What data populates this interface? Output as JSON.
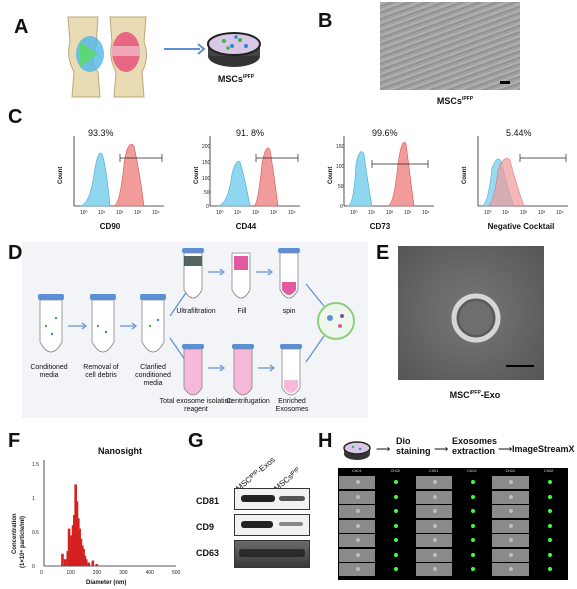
{
  "panels": {
    "A": {
      "label": "A",
      "dish_caption": "MSCs",
      "dish_caption_sup": "iPFP"
    },
    "B": {
      "label": "B",
      "caption": "MSCs",
      "caption_sup": "iPFP"
    },
    "C": {
      "label": "C",
      "plots": [
        {
          "marker": "CD90",
          "percent": "93.3%"
        },
        {
          "marker": "CD44",
          "percent": "91. 8%"
        },
        {
          "marker": "CD73",
          "percent": "99.6%"
        },
        {
          "marker": "Negative Cocktail",
          "percent": "5.44%"
        }
      ],
      "ylabel": "Count",
      "yticks": [
        "0",
        "50",
        "100",
        "150",
        "200"
      ],
      "yticks_cd73": [
        "0",
        "50",
        "100",
        "150"
      ],
      "xticks": [
        "10⁰",
        "10¹",
        "10²",
        "10³",
        "10⁴"
      ]
    },
    "D": {
      "label": "D",
      "steps": {
        "conditioned": "Conditioned media",
        "removal": "Removal of cell debris",
        "clarified": "Clarified conditioned media",
        "ultrafiltration": "Ultrafiltration",
        "fill": "Fill",
        "spin": "spin",
        "reagent": "Total exosome isolation reagent",
        "centrifugation": "Centrifugation",
        "enriched": "Enriched Exosomes"
      }
    },
    "E": {
      "label": "E",
      "caption": "MSC",
      "caption_sup": "iPFP",
      "caption_suffix": "-Exo"
    },
    "F": {
      "label": "F",
      "title": "Nanosight",
      "ylabel_line1": "Concentration",
      "ylabel_line2": "(1×10⁶ particle/ml)",
      "xlabel": "Diameter (nm)",
      "yticks": [
        "0",
        "0.5",
        "1",
        "1.5"
      ],
      "xticks": [
        "0",
        "100",
        "200",
        "300",
        "400",
        "500"
      ]
    },
    "G": {
      "label": "G",
      "lanes": [
        "MSCᴵᴾᶠᴾ-Exos",
        "MSCsᴵᴾᶠᴾ"
      ],
      "bands": [
        "CD81",
        "CD9",
        "CD63"
      ]
    },
    "H": {
      "label": "H",
      "flow": [
        "Dio staining",
        "Exosomes extraction",
        "ImageStreamX"
      ],
      "col_headers": [
        "Ch01",
        "Ch02",
        "Ch01",
        "Ch02",
        "Ch01",
        "Ch02"
      ]
    }
  },
  "chart_data": {
    "type": "bar",
    "title": "Nanosight",
    "xlabel": "Diameter (nm)",
    "ylabel": "Concentration (1×10⁶ particle/ml)",
    "xlim": [
      0,
      500
    ],
    "ylim": [
      0,
      1.5
    ],
    "x": [
      70,
      80,
      90,
      95,
      100,
      105,
      110,
      115,
      120,
      125,
      130,
      135,
      140,
      145,
      150,
      155,
      160,
      170,
      185,
      200
    ],
    "values": [
      0.18,
      0.1,
      0.22,
      0.55,
      0.35,
      0.45,
      0.6,
      0.75,
      1.2,
      0.95,
      0.7,
      0.55,
      0.4,
      0.3,
      0.25,
      0.15,
      0.1,
      0.05,
      0.08,
      0.03
    ]
  }
}
